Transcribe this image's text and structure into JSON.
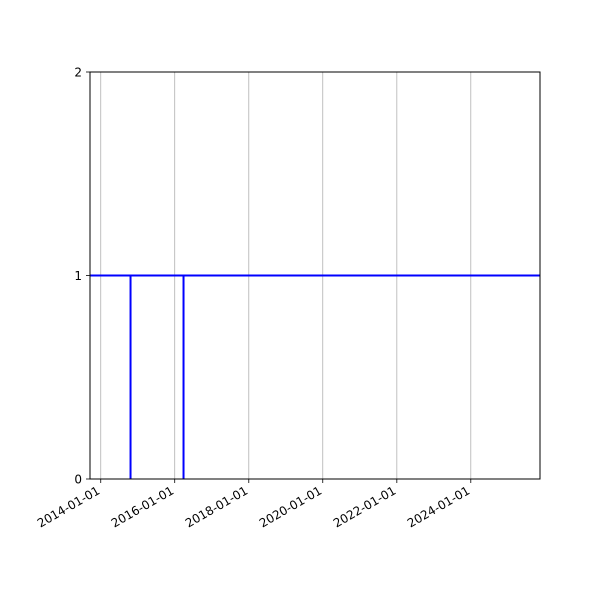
{
  "chart_data": {
    "type": "line",
    "title": "",
    "xlabel": "",
    "ylabel": "",
    "x_type": "date",
    "xlim": [
      "2013-09-17",
      "2025-11-14"
    ],
    "ylim": [
      0,
      2
    ],
    "x_ticks": [
      "2014-01-01",
      "2016-01-01",
      "2018-01-01",
      "2020-01-01",
      "2022-01-01",
      "2024-01-01"
    ],
    "y_ticks": [
      0,
      1,
      2
    ],
    "grid": "x-only",
    "color": "#0000ff",
    "hlines": [
      {
        "y": 1,
        "xmin": "2013-09-17",
        "xmax": "2025-11-14"
      }
    ],
    "vlines": [
      {
        "x": "2014-10-22",
        "ymin": 0,
        "ymax": 1
      },
      {
        "x": "2016-03-28",
        "ymin": 0,
        "ymax": 1
      }
    ]
  }
}
